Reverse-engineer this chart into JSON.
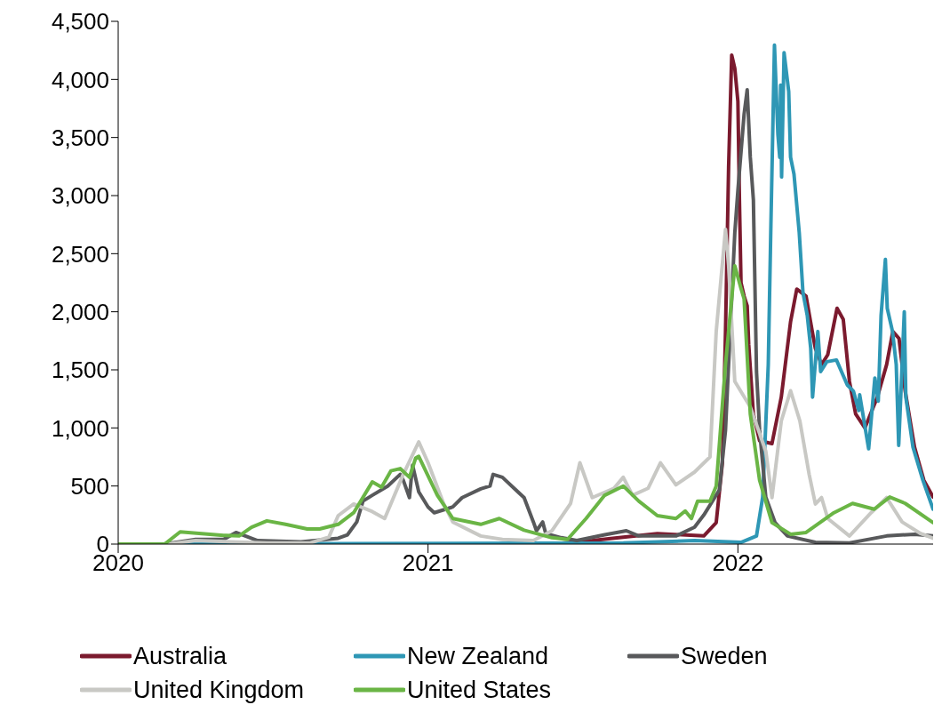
{
  "chart_data": {
    "type": "line",
    "xlim": [
      2020,
      2022.63
    ],
    "xticks": [
      2020,
      2021,
      2022
    ],
    "ylim": [
      0,
      4500
    ],
    "yticks": [
      0,
      500,
      {
        "value": 1000,
        "label": "1,000"
      },
      {
        "value": 1500,
        "label": "1,500"
      },
      {
        "value": 2000,
        "label": "2,000"
      },
      {
        "value": 2500,
        "label": "2,500"
      },
      {
        "value": 3000,
        "label": "3,000"
      },
      {
        "value": 3500,
        "label": "3,500"
      },
      {
        "value": 4000,
        "label": "4,000"
      },
      {
        "value": 4500,
        "label": "4,500"
      }
    ],
    "legend": "bottom",
    "marker": "none",
    "line_style": "solid",
    "series": [
      {
        "name": "Australia",
        "color": "#7b1a2e",
        "x": [
          2020,
          2021.4,
          2021.53,
          2021.63,
          2021.74,
          2021.89,
          2021.93,
          2021.95,
          2021.96,
          2021.97,
          2021.98,
          2021.99,
          2022,
          2022.005,
          2022.01,
          2022.02,
          2022.03,
          2022.035,
          2022.05,
          2022.07,
          2022.11,
          2022.14,
          2022.17,
          2022.19,
          2022.22,
          2022.24,
          2022.25,
          2022.27,
          2022.29,
          2022.32,
          2022.34,
          2022.36,
          2022.38,
          2022.41,
          2022.45,
          2022.48,
          2022.5,
          2022.52,
          2022.54,
          2022.57,
          2022.6,
          2022.63
        ],
        "values": [
          0,
          0,
          30,
          60,
          90,
          70,
          185,
          700,
          1830,
          3245,
          4210,
          4095,
          3810,
          2960,
          2250,
          2135,
          2050,
          1715,
          1120,
          890,
          865,
          1265,
          1915,
          2195,
          2135,
          1830,
          1685,
          1545,
          1630,
          2030,
          1935,
          1400,
          1120,
          1000,
          1265,
          1545,
          1830,
          1770,
          1315,
          835,
          550,
          405
        ]
      },
      {
        "name": "New Zealand",
        "color": "#2e97b5",
        "x": [
          2020,
          2021.63,
          2021.86,
          2022.01,
          2022.06,
          2022.08,
          2022.098,
          2022.106,
          2022.118,
          2022.129,
          2022.135,
          2022.138,
          2022.141,
          2022.149,
          2022.164,
          2022.17,
          2022.181,
          2022.198,
          2022.21,
          2022.224,
          2022.235,
          2022.241,
          2022.258,
          2022.267,
          2022.287,
          2022.318,
          2022.353,
          2022.373,
          2022.39,
          2022.393,
          2022.422,
          2022.442,
          2022.453,
          2022.462,
          2022.476,
          2022.482,
          2022.499,
          2022.511,
          2022.519,
          2022.537,
          2022.542,
          2022.565,
          2022.597,
          2022.63
        ],
        "values": [
          0,
          10,
          30,
          15,
          70,
          405,
          1545,
          2680,
          4295,
          3530,
          3330,
          3950,
          3160,
          4230,
          3895,
          3330,
          3185,
          2680,
          2165,
          1965,
          1685,
          1265,
          1830,
          1485,
          1570,
          1585,
          1370,
          1315,
          1150,
          1285,
          820,
          1430,
          1230,
          1965,
          2450,
          2030,
          1830,
          1545,
          850,
          2000,
          1265,
          835,
          550,
          300
        ]
      },
      {
        "name": "Sweden",
        "color": "#58595b",
        "x": [
          2020,
          2020.15,
          2020.25,
          2020.34,
          2020.38,
          2020.45,
          2020.59,
          2020.71,
          2020.74,
          2020.77,
          2020.79,
          2020.82,
          2020.87,
          2020.91,
          2020.92,
          2020.94,
          2020.95,
          2020.97,
          2021,
          2021.02,
          2021.08,
          2021.11,
          2021.17,
          2021.2,
          2021.21,
          2021.24,
          2021.28,
          2021.31,
          2021.34,
          2021.35,
          2021.37,
          2021.38,
          2021.43,
          2021.48,
          2021.57,
          2021.64,
          2021.68,
          2021.8,
          2021.86,
          2021.89,
          2021.94,
          2021.96,
          2021.99,
          2022,
          2022.02,
          2022.03,
          2022.04,
          2022.05,
          2022.06,
          2022.07,
          2022.09,
          2022.12,
          2022.16,
          2022.25,
          2022.36,
          2022.48,
          2022.57,
          2022.63
        ],
        "values": [
          0,
          0,
          40,
          40,
          100,
          30,
          20,
          50,
          80,
          190,
          370,
          420,
          500,
          600,
          550,
          400,
          680,
          450,
          320,
          270,
          320,
          400,
          475,
          500,
          600,
          575,
          475,
          400,
          190,
          115,
          190,
          90,
          55,
          30,
          80,
          115,
          70,
          70,
          145,
          250,
          465,
          980,
          2680,
          3045,
          3700,
          3910,
          3330,
          2960,
          1485,
          980,
          405,
          185,
          70,
          15,
          10,
          70,
          85,
          70
        ]
      },
      {
        "name": "United Kingdom",
        "color": "#c8c8c4",
        "x": [
          2020,
          2020.16,
          2020.25,
          2020.36,
          2020.48,
          2020.62,
          2020.68,
          2020.71,
          2020.76,
          2020.82,
          2020.86,
          2020.92,
          2020.97,
          2021,
          2021.05,
          2021.08,
          2021.17,
          2021.24,
          2021.34,
          2021.4,
          2021.46,
          2021.49,
          2021.53,
          2021.6,
          2021.63,
          2021.66,
          2021.71,
          2021.75,
          2021.8,
          2021.86,
          2021.91,
          2021.93,
          2021.96,
          2021.97,
          2021.99,
          2022.04,
          2022.09,
          2022.11,
          2022.14,
          2022.17,
          2022.2,
          2022.23,
          2022.25,
          2022.27,
          2022.29,
          2022.36,
          2022.43,
          2022.48,
          2022.53,
          2022.59,
          2022.63
        ],
        "values": [
          0,
          0,
          30,
          20,
          10,
          10,
          60,
          245,
          345,
          280,
          220,
          600,
          880,
          700,
          350,
          190,
          70,
          40,
          30,
          115,
          350,
          700,
          400,
          480,
          575,
          420,
          480,
          700,
          510,
          620,
          750,
          1830,
          2710,
          2400,
          1400,
          1180,
          800,
          400,
          1060,
          1320,
          1060,
          600,
          345,
          400,
          220,
          70,
          270,
          400,
          190,
          90,
          50
        ]
      },
      {
        "name": "United States",
        "color": "#6ab545",
        "x": [
          2020,
          2020.15,
          2020.2,
          2020.34,
          2020.39,
          2020.43,
          2020.48,
          2020.54,
          2020.61,
          2020.65,
          2020.71,
          2020.76,
          2020.82,
          2020.85,
          2020.88,
          2020.91,
          2020.94,
          2020.96,
          2020.97,
          2021.03,
          2021.08,
          2021.17,
          2021.23,
          2021.31,
          2021.4,
          2021.45,
          2021.51,
          2021.57,
          2021.63,
          2021.68,
          2021.74,
          2021.8,
          2021.83,
          2021.85,
          2021.87,
          2021.91,
          2021.93,
          2021.96,
          2021.99,
          2022.01,
          2022.02,
          2022.04,
          2022.07,
          2022.11,
          2022.17,
          2022.22,
          2022.31,
          2022.37,
          2022.44,
          2022.49,
          2022.54,
          2022.63
        ],
        "values": [
          0,
          0,
          105,
          75,
          70,
          145,
          200,
          170,
          130,
          130,
          170,
          270,
          535,
          490,
          630,
          650,
          575,
          740,
          755,
          420,
          220,
          170,
          220,
          120,
          55,
          40,
          220,
          420,
          500,
          370,
          245,
          220,
          285,
          220,
          370,
          370,
          500,
          1550,
          2395,
          2200,
          2110,
          1120,
          550,
          185,
          85,
          100,
          270,
          350,
          300,
          405,
          350,
          185
        ]
      }
    ]
  }
}
